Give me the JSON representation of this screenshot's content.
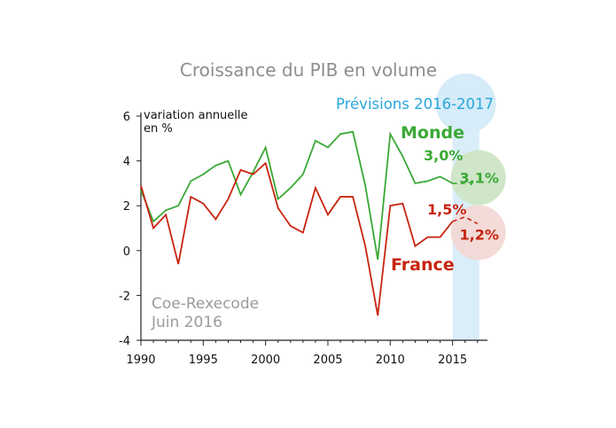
{
  "chart_data": {
    "type": "line",
    "title": "Croissance du PIB en volume",
    "ylabel_line1": "variation annuelle",
    "ylabel_line2": "en %",
    "forecast_label": "Prévisions 2016-2017",
    "source_line1": "Coe-Rexecode",
    "source_line2": "Juin 2016",
    "ylim": [
      -4,
      6
    ],
    "y_ticks": [
      "6",
      "4",
      "2",
      "0",
      "-2",
      "-4"
    ],
    "y_tick_values": [
      6,
      4,
      2,
      0,
      -2,
      -4
    ],
    "x_ticks": [
      "1990",
      "1995",
      "2000",
      "2005",
      "2010",
      "2015"
    ],
    "x_tick_values": [
      1990,
      1995,
      2000,
      2005,
      2010,
      2015
    ],
    "xlim": [
      1990,
      2017.8
    ],
    "forecast_span": [
      2015,
      2017
    ],
    "grid": false,
    "series": [
      {
        "name": "Monde",
        "color": "#3aa935",
        "x": [
          1990,
          1991,
          1992,
          1993,
          1994,
          1995,
          1996,
          1997,
          1998,
          1999,
          2000,
          2001,
          2002,
          2003,
          2004,
          2005,
          2006,
          2007,
          2008,
          2009,
          2010,
          2011,
          2012,
          2013,
          2014,
          2015
        ],
        "values": [
          2.7,
          1.3,
          1.8,
          2.0,
          3.1,
          3.4,
          3.8,
          4.0,
          2.5,
          3.5,
          4.6,
          2.3,
          2.8,
          3.4,
          4.9,
          4.6,
          5.2,
          5.3,
          2.9,
          -0.4,
          5.2,
          4.2,
          3.0,
          3.1,
          3.3,
          3.0
        ],
        "forecast_x": [
          2015,
          2016,
          2017
        ],
        "forecast_values": [
          3.0,
          3.0,
          3.1
        ],
        "label_2016": "3,0%",
        "label_2017": "3,1%"
      },
      {
        "name": "France",
        "color": "#c8240f",
        "x": [
          1990,
          1991,
          1992,
          1993,
          1994,
          1995,
          1996,
          1997,
          1998,
          1999,
          2000,
          2001,
          2002,
          2003,
          2004,
          2005,
          2006,
          2007,
          2008,
          2009,
          2010,
          2011,
          2012,
          2013,
          2014,
          2015
        ],
        "values": [
          2.9,
          1.0,
          1.6,
          -0.6,
          2.4,
          2.1,
          1.4,
          2.3,
          3.6,
          3.4,
          3.9,
          1.9,
          1.1,
          0.8,
          2.8,
          1.6,
          2.4,
          2.4,
          0.2,
          -2.9,
          2.0,
          2.1,
          0.2,
          0.6,
          0.6,
          1.3
        ],
        "forecast_x": [
          2015,
          2016,
          2017
        ],
        "forecast_values": [
          1.3,
          1.5,
          1.2
        ],
        "label_2016": "1,5%",
        "label_2017": "1,2%"
      }
    ]
  },
  "colors": {
    "forecast_band": "#d9eef9",
    "forecast_circle": "#d6ecf8",
    "monde_circle": "#cfe6c8",
    "france_circle": "#f3d7d3"
  }
}
